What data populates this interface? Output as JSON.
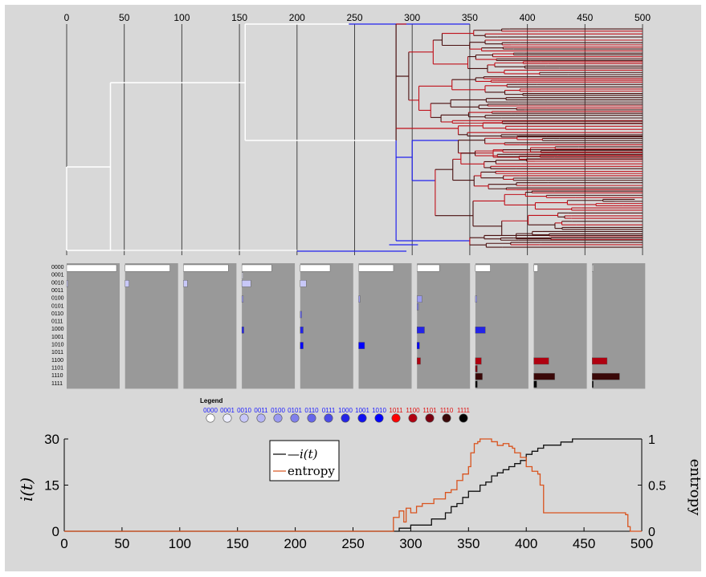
{
  "colors": {
    "panel_background": "#d8d8d8",
    "hist_background": "#999999",
    "tree_gridline": "#444444",
    "entropy_line": "#d9531e",
    "it_line": "#111111",
    "legend_blue_text": "#1a1aff",
    "legend_red_text": "#e01010"
  },
  "legend": {
    "title": "Legend",
    "entries": [
      {
        "code": "0000",
        "color": "#ffffff",
        "label_color": "#1a1aff"
      },
      {
        "code": "0001",
        "color": "#ecedfd",
        "label_color": "#1a1aff"
      },
      {
        "code": "0010",
        "color": "#c8c8f8",
        "label_color": "#1a1aff"
      },
      {
        "code": "0011",
        "color": "#b4b4f4",
        "label_color": "#1a1aff"
      },
      {
        "code": "0100",
        "color": "#9a9af0",
        "label_color": "#1a1aff"
      },
      {
        "code": "0101",
        "color": "#8080ec",
        "label_color": "#1a1aff"
      },
      {
        "code": "0110",
        "color": "#6666ea",
        "label_color": "#1a1aff"
      },
      {
        "code": "0111",
        "color": "#4c4ce8",
        "label_color": "#1a1aff"
      },
      {
        "code": "1000",
        "color": "#2323e6",
        "label_color": "#1a1aff"
      },
      {
        "code": "1001",
        "color": "#1010f0",
        "label_color": "#1a1aff"
      },
      {
        "code": "1010",
        "color": "#0000ff",
        "label_color": "#1a1aff"
      },
      {
        "code": "1011",
        "color": "#ff0000",
        "label_color": "#e01010"
      },
      {
        "code": "1100",
        "color": "#b00010",
        "label_color": "#e01010"
      },
      {
        "code": "1101",
        "color": "#7a0010",
        "label_color": "#e01010"
      },
      {
        "code": "1110",
        "color": "#3a0808",
        "label_color": "#e01010"
      },
      {
        "code": "1111",
        "color": "#000000",
        "label_color": "#e01010"
      }
    ]
  },
  "chart_data": [
    {
      "type": "tree",
      "description": "time-resolved phylogenetic tree of infections",
      "xlim": [
        0,
        500
      ],
      "xticks": [
        0,
        50,
        100,
        150,
        200,
        250,
        300,
        350,
        400,
        450,
        500
      ],
      "xticklabels": [
        "0",
        "50",
        "100",
        "150",
        "200",
        "250",
        "300",
        "350",
        "400",
        "450",
        "500"
      ],
      "grid": true
    },
    {
      "type": "bar",
      "description": "genotype frequency histograms at sampled times",
      "categories": [
        "0000",
        "0001",
        "0010",
        "0011",
        "0100",
        "0101",
        "0110",
        "0111",
        "1000",
        "1001",
        "1010",
        "1011",
        "1100",
        "1101",
        "1110",
        "1111"
      ],
      "panels": [
        {
          "values": [
            1.0,
            0,
            0.02,
            0,
            0,
            0,
            0,
            0,
            0,
            0,
            0,
            0,
            0,
            0,
            0,
            0
          ]
        },
        {
          "values": [
            0.9,
            0,
            0.08,
            0,
            0,
            0,
            0,
            0,
            0,
            0,
            0,
            0,
            0,
            0,
            0,
            0
          ]
        },
        {
          "values": [
            0.9,
            0,
            0.08,
            0,
            0,
            0,
            0,
            0,
            0,
            0,
            0,
            0,
            0,
            0,
            0,
            0
          ]
        },
        {
          "values": [
            0.6,
            0.02,
            0.18,
            0,
            0.03,
            0,
            0,
            0,
            0.04,
            0,
            0,
            0,
            0,
            0,
            0,
            0
          ]
        },
        {
          "values": [
            0.6,
            0,
            0.12,
            0,
            0,
            0,
            0.03,
            0,
            0.06,
            0,
            0.06,
            0,
            0,
            0,
            0,
            0
          ]
        },
        {
          "values": [
            0.7,
            0,
            0,
            0,
            0.03,
            0,
            0,
            0,
            0,
            0,
            0.12,
            0,
            0,
            0,
            0,
            0
          ]
        },
        {
          "values": [
            0.45,
            0,
            0,
            0,
            0.1,
            0.03,
            0,
            0,
            0.15,
            0,
            0.05,
            0,
            0.07,
            0,
            0,
            0
          ]
        },
        {
          "values": [
            0.3,
            0,
            0,
            0,
            0.03,
            0,
            0,
            0,
            0.2,
            0,
            0,
            0,
            0.12,
            0.04,
            0.14,
            0.04
          ]
        },
        {
          "values": [
            0.08,
            0,
            0,
            0,
            0,
            0,
            0,
            0,
            0,
            0,
            0,
            0,
            0.3,
            0,
            0.42,
            0.06
          ]
        },
        {
          "values": [
            0.02,
            0,
            0,
            0,
            0,
            0,
            0,
            0,
            0,
            0,
            0,
            0,
            0.3,
            0,
            0.55,
            0.02
          ]
        }
      ]
    },
    {
      "type": "line",
      "xlabel": "",
      "ylabel": "i(t)",
      "y2label": "entropy",
      "xlim": [
        0,
        500
      ],
      "ylim": [
        0,
        30
      ],
      "y2lim": [
        0,
        1
      ],
      "xticks": [
        0,
        50,
        100,
        150,
        200,
        250,
        300,
        350,
        400,
        450,
        500
      ],
      "xticklabels": [
        "0",
        "50",
        "100",
        "150",
        "200",
        "250",
        "300",
        "350",
        "400",
        "450",
        "500"
      ],
      "yticks": [
        0,
        15,
        30
      ],
      "yticklabels": [
        "0",
        "15",
        "30"
      ],
      "y2ticks": [
        0,
        0.5,
        1
      ],
      "y2ticklabels": [
        "0",
        "0.5",
        "1"
      ],
      "legend_position": "top-center",
      "series": [
        {
          "name": "—i(t)",
          "axis": "left",
          "x": [
            0,
            283,
            290,
            295,
            300,
            305,
            310,
            318,
            322,
            330,
            335,
            340,
            345,
            350,
            355,
            360,
            365,
            370,
            375,
            380,
            385,
            390,
            395,
            400,
            405,
            410,
            415,
            420,
            430,
            440,
            450,
            460,
            470,
            480,
            490,
            495,
            500
          ],
          "y": [
            0,
            0,
            1,
            1,
            2,
            2,
            2,
            4,
            4,
            6,
            8,
            9,
            11,
            13,
            13,
            15,
            16,
            18,
            19,
            20,
            21,
            22,
            23,
            25,
            26,
            27,
            28,
            28,
            29,
            30,
            30,
            30,
            30,
            30,
            30,
            30,
            30
          ]
        },
        {
          "name": "entropy",
          "axis": "right",
          "x": [
            0,
            283,
            285,
            290,
            294,
            296,
            300,
            305,
            310,
            315,
            320,
            325,
            330,
            335,
            340,
            345,
            350,
            352,
            355,
            358,
            360,
            365,
            370,
            375,
            380,
            385,
            388,
            390,
            395,
            400,
            405,
            410,
            412,
            415,
            420,
            430,
            440,
            450,
            460,
            470,
            480,
            486,
            488,
            490,
            500
          ],
          "y": [
            0,
            0,
            0.15,
            0.22,
            0.1,
            0.25,
            0.2,
            0.27,
            0.3,
            0.3,
            0.35,
            0.35,
            0.42,
            0.45,
            0.55,
            0.62,
            0.7,
            0.85,
            0.95,
            0.97,
            1.0,
            1.0,
            0.97,
            0.93,
            0.95,
            0.92,
            0.9,
            0.85,
            0.8,
            0.7,
            0.65,
            0.62,
            0.5,
            0.2,
            0.2,
            0.2,
            0.2,
            0.2,
            0.2,
            0.2,
            0.2,
            0.18,
            0.05,
            0,
            0
          ]
        }
      ]
    }
  ]
}
